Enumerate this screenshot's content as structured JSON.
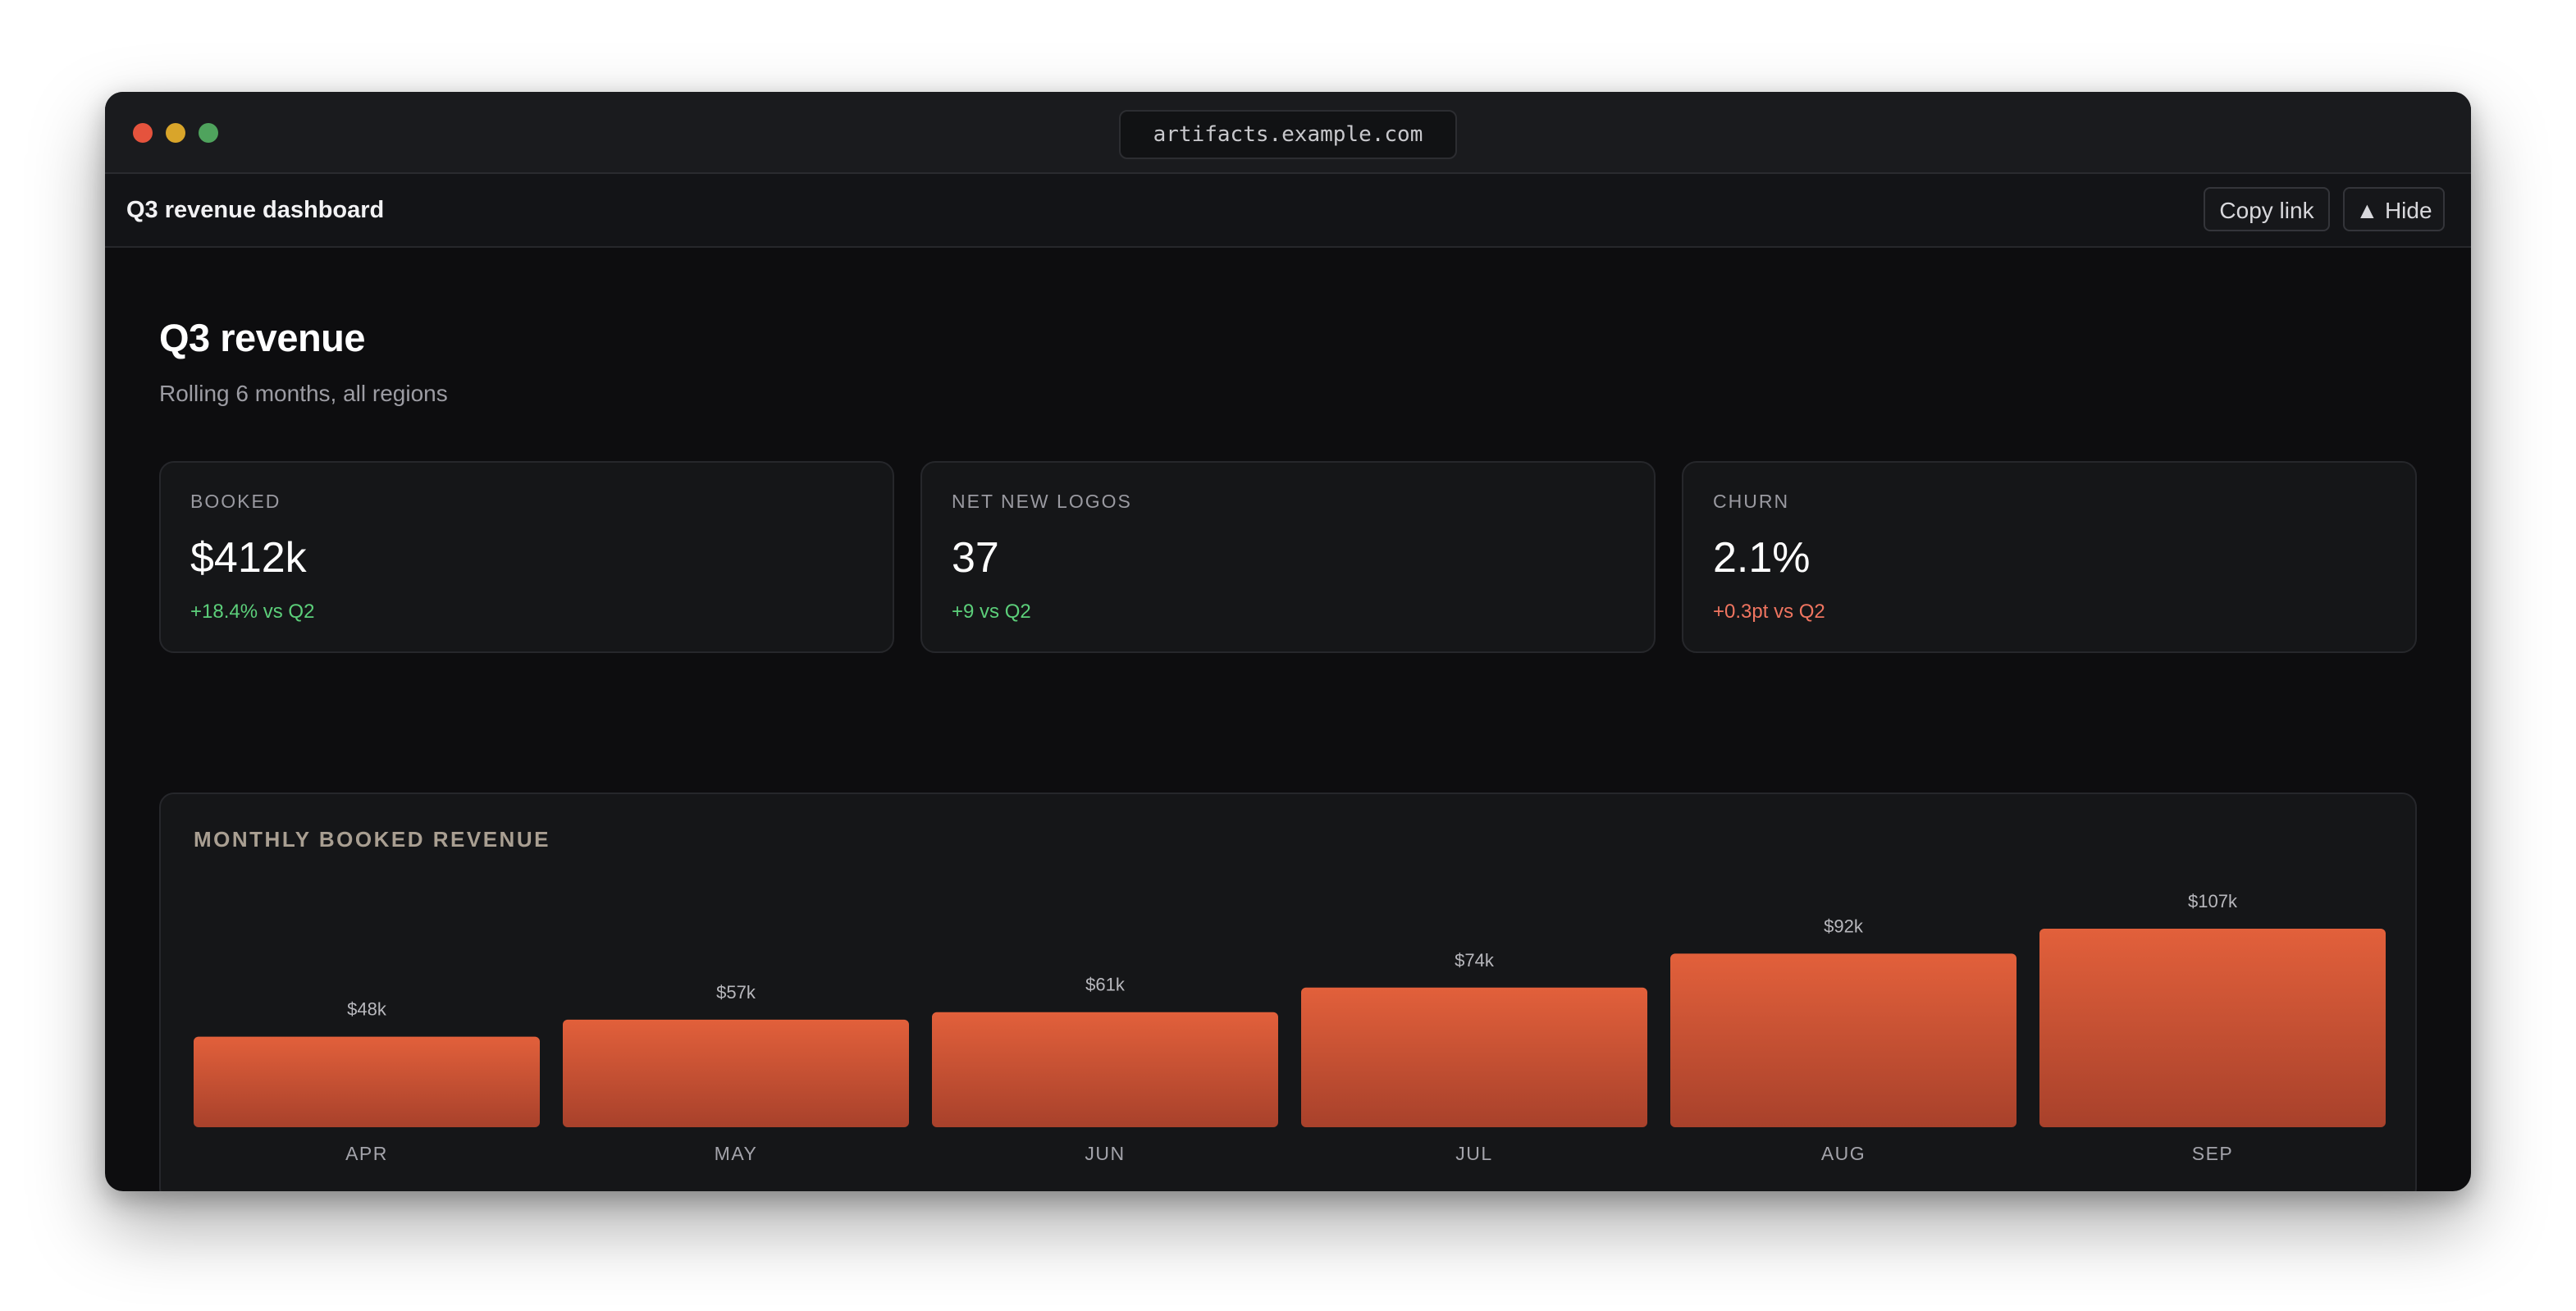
{
  "browser": {
    "url": "artifacts.example.com"
  },
  "appbar": {
    "title": "Q3 revenue dashboard",
    "copy_label": "Copy link",
    "hide_label": "▲ Hide"
  },
  "page": {
    "title": "Q3 revenue",
    "subtitle": "Rolling 6 months, all regions"
  },
  "kpis": [
    {
      "label": "BOOKED",
      "value": "$412k",
      "delta": "+18.4% vs Q2",
      "trend": "positive"
    },
    {
      "label": "NET NEW LOGOS",
      "value": "37",
      "delta": "+9 vs Q2",
      "trend": "positive"
    },
    {
      "label": "CHURN",
      "value": "2.1%",
      "delta": "+0.3pt vs Q2",
      "trend": "negative"
    }
  ],
  "colors": {
    "bar_top": "#e2603b",
    "bar_bottom": "#a8412b",
    "positive": "#5ccf7a",
    "negative": "#f07560"
  },
  "chart_data": {
    "type": "bar",
    "title": "MONTHLY BOOKED REVENUE",
    "categories": [
      "APR",
      "MAY",
      "JUN",
      "JUL",
      "AUG",
      "SEP"
    ],
    "values": [
      48,
      57,
      61,
      74,
      92,
      107
    ],
    "value_labels": [
      "$48k",
      "$57k",
      "$61k",
      "$74k",
      "$92k",
      "$107k"
    ],
    "unit": "k USD",
    "grid": false,
    "legend": "none"
  }
}
